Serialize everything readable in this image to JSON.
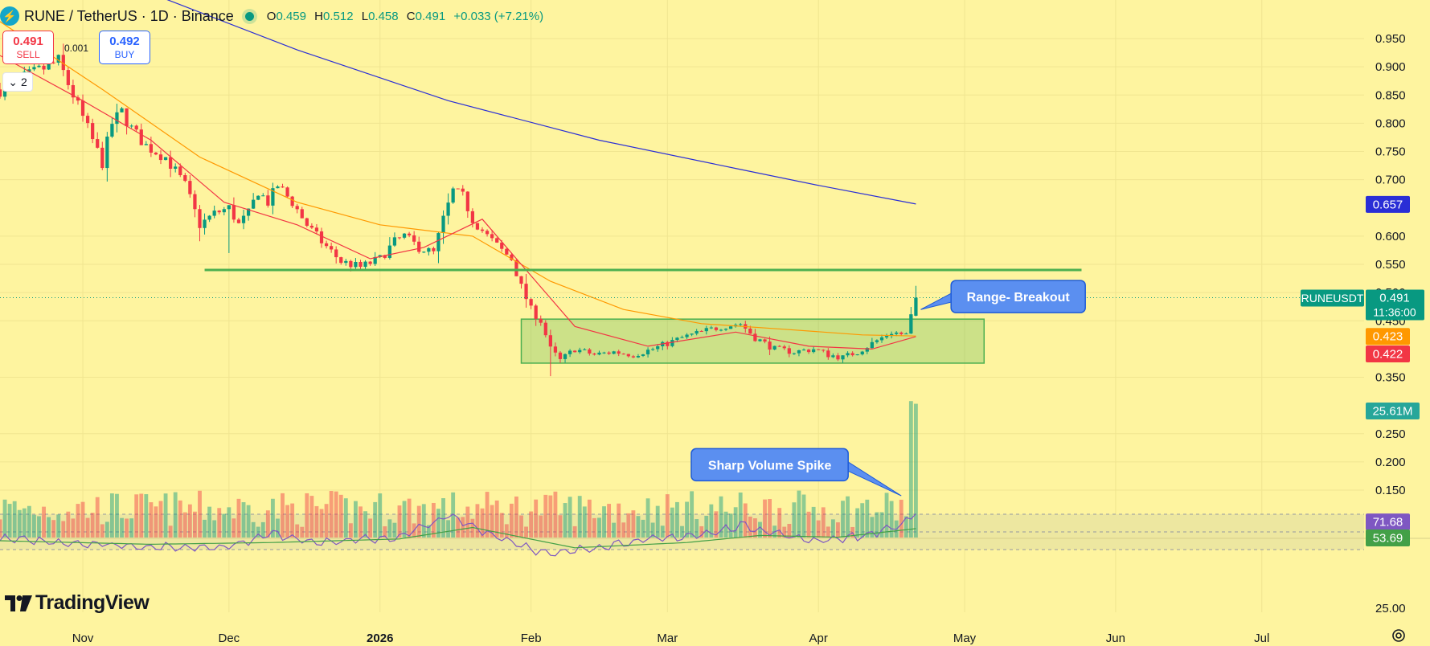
{
  "header": {
    "pair": "RUNE / TetherUS · 1D · Binance",
    "open_label": "O",
    "open": "0.459",
    "high_label": "H",
    "high": "0.512",
    "low_label": "L",
    "low": "0.458",
    "close_label": "C",
    "close": "0.491",
    "change": "+0.033 (+7.21%)"
  },
  "trade": {
    "sell_price": "0.491",
    "sell_label": "SELL",
    "buy_price": "0.492",
    "buy_label": "BUY",
    "spread": "0.001",
    "collapse_label": "2"
  },
  "brand": "TradingView",
  "colors": {
    "background": "#fef49f",
    "up": "#089981",
    "down": "#f23645",
    "ema_fast": "#f23645",
    "ema_mid": "#ff9800",
    "ema_slow": "#2a2ed6",
    "support": "#4caf50",
    "callout": "#5b8ff0"
  },
  "chart_data": {
    "type": "candlestick",
    "symbol": "RUNEUSDT",
    "interval": "1D",
    "price_axis": {
      "ticks": [
        "0.950",
        "0.900",
        "0.850",
        "0.800",
        "0.750",
        "0.700",
        "0.600",
        "0.550",
        "0.500",
        "0.450",
        "0.350",
        "0.250",
        "0.200",
        "0.150"
      ],
      "range": [
        0.1,
        0.96
      ]
    },
    "x_axis": {
      "ticks": [
        {
          "label": "Nov",
          "date": "2025-11-01"
        },
        {
          "label": "Dec",
          "date": "2025-12-01"
        },
        {
          "label": "2026",
          "date": "2026-01-01"
        },
        {
          "label": "Feb",
          "date": "2026-02-01"
        },
        {
          "label": "Mar",
          "date": "2026-03-01"
        },
        {
          "label": "Apr",
          "date": "2026-04-01"
        },
        {
          "label": "May",
          "date": "2026-05-01"
        },
        {
          "label": "Jun",
          "date": "2026-06-01"
        },
        {
          "label": "Jul",
          "date": "2026-07-01"
        }
      ],
      "range": [
        "2025-10-15",
        "2026-07-22"
      ]
    },
    "close_anchors": [
      [
        "2025-10-15",
        0.86
      ],
      [
        "2025-10-20",
        0.88
      ],
      [
        "2025-10-27",
        0.91
      ],
      [
        "2025-10-31",
        0.83
      ],
      [
        "2025-11-03",
        0.77
      ],
      [
        "2025-11-05",
        0.73
      ],
      [
        "2025-11-07",
        0.8
      ],
      [
        "2025-11-09",
        0.82
      ],
      [
        "2025-11-11",
        0.79
      ],
      [
        "2025-11-14",
        0.76
      ],
      [
        "2025-11-18",
        0.74
      ],
      [
        "2025-11-22",
        0.69
      ],
      [
        "2025-11-25",
        0.62
      ],
      [
        "2025-11-28",
        0.64
      ],
      [
        "2025-12-01",
        0.65
      ],
      [
        "2025-12-03",
        0.62
      ],
      [
        "2025-12-05",
        0.64
      ],
      [
        "2025-12-07",
        0.68
      ],
      [
        "2025-12-09",
        0.66
      ],
      [
        "2025-12-11",
        0.69
      ],
      [
        "2025-12-14",
        0.66
      ],
      [
        "2025-12-17",
        0.62
      ],
      [
        "2025-12-20",
        0.59
      ],
      [
        "2025-12-24",
        0.555
      ],
      [
        "2025-12-28",
        0.545
      ],
      [
        "2026-01-01",
        0.56
      ],
      [
        "2026-01-04",
        0.59
      ],
      [
        "2026-01-06",
        0.6
      ],
      [
        "2026-01-09",
        0.58
      ],
      [
        "2026-01-12",
        0.57
      ],
      [
        "2026-01-14",
        0.63
      ],
      [
        "2026-01-16",
        0.68
      ],
      [
        "2026-01-18",
        0.67
      ],
      [
        "2026-01-20",
        0.63
      ],
      [
        "2026-01-23",
        0.6
      ],
      [
        "2026-01-26",
        0.575
      ],
      [
        "2026-01-28",
        0.56
      ],
      [
        "2026-01-30",
        0.51
      ],
      [
        "2026-02-01",
        0.47
      ],
      [
        "2026-02-03",
        0.45
      ],
      [
        "2026-02-05",
        0.4
      ],
      [
        "2026-02-07",
        0.38
      ],
      [
        "2026-02-10",
        0.4
      ],
      [
        "2026-02-14",
        0.39
      ],
      [
        "2026-02-18",
        0.395
      ],
      [
        "2026-02-22",
        0.39
      ],
      [
        "2026-02-26",
        0.4
      ],
      [
        "2026-03-01",
        0.41
      ],
      [
        "2026-03-04",
        0.42
      ],
      [
        "2026-03-08",
        0.43
      ],
      [
        "2026-03-12",
        0.44
      ],
      [
        "2026-03-16",
        0.445
      ],
      [
        "2026-03-19",
        0.42
      ],
      [
        "2026-03-23",
        0.4
      ],
      [
        "2026-03-27",
        0.395
      ],
      [
        "2026-03-31",
        0.4
      ],
      [
        "2026-04-03",
        0.39
      ],
      [
        "2026-04-06",
        0.385
      ],
      [
        "2026-04-09",
        0.395
      ],
      [
        "2026-04-12",
        0.41
      ],
      [
        "2026-04-16",
        0.43
      ],
      [
        "2026-04-19",
        0.425
      ],
      [
        "2026-04-20",
        0.458
      ],
      [
        "2026-04-21",
        0.491
      ]
    ],
    "last_candle": {
      "date": "2026-04-21",
      "open": 0.459,
      "high": 0.512,
      "low": 0.458,
      "close": 0.491
    },
    "moving_averages": [
      {
        "value": "0.657",
        "color": "#2a2ed6",
        "points": [
          [
            "2025-10-15",
            1.12
          ],
          [
            "2025-11-15",
            1.03
          ],
          [
            "2025-12-15",
            0.93
          ],
          [
            "2026-01-15",
            0.84
          ],
          [
            "2026-02-15",
            0.77
          ],
          [
            "2026-03-15",
            0.72
          ],
          [
            "2026-04-01",
            0.69
          ],
          [
            "2026-04-21",
            0.657
          ]
        ]
      },
      {
        "value": "0.423",
        "color": "#ff9800",
        "points": [
          [
            "2025-10-15",
            0.98
          ],
          [
            "2025-11-05",
            0.86
          ],
          [
            "2025-11-25",
            0.74
          ],
          [
            "2025-12-15",
            0.66
          ],
          [
            "2026-01-01",
            0.62
          ],
          [
            "2026-01-20",
            0.6
          ],
          [
            "2026-02-05",
            0.52
          ],
          [
            "2026-02-20",
            0.47
          ],
          [
            "2026-03-08",
            0.445
          ],
          [
            "2026-03-25",
            0.435
          ],
          [
            "2026-04-10",
            0.425
          ],
          [
            "2026-04-21",
            0.423
          ]
        ]
      },
      {
        "value": "0.422",
        "color": "#f23645",
        "points": [
          [
            "2025-10-15",
            0.92
          ],
          [
            "2025-11-01",
            0.84
          ],
          [
            "2025-11-15",
            0.77
          ],
          [
            "2025-11-30",
            0.66
          ],
          [
            "2025-12-15",
            0.62
          ],
          [
            "2025-12-30",
            0.56
          ],
          [
            "2026-01-10",
            0.58
          ],
          [
            "2026-01-22",
            0.63
          ],
          [
            "2026-02-01",
            0.53
          ],
          [
            "2026-02-10",
            0.44
          ],
          [
            "2026-02-25",
            0.405
          ],
          [
            "2026-03-15",
            0.43
          ],
          [
            "2026-03-30",
            0.405
          ],
          [
            "2026-04-12",
            0.4
          ],
          [
            "2026-04-21",
            0.422
          ]
        ]
      }
    ],
    "support_line": {
      "price": 0.54,
      "from": "2025-11-26",
      "to": "2026-05-25"
    },
    "range_box": {
      "from": "2026-01-30",
      "to": "2026-05-05",
      "top": 0.453,
      "bottom": 0.375
    },
    "callouts": [
      {
        "text": "Range- Breakout",
        "price": 0.493,
        "date": "2026-05-12",
        "target_date": "2026-04-22",
        "target_price": 0.47
      },
      {
        "text": "Sharp Volume Spike",
        "price": 0.195,
        "date": "2026-03-22",
        "target_date": "2026-04-18",
        "target_price": 0.14
      }
    ],
    "volume": {
      "last_label": "25.61M",
      "last_value": 25.61,
      "typical_range_m": [
        2,
        9
      ]
    },
    "rsi": {
      "levels": [
        70,
        50,
        30
      ],
      "value": "71.68",
      "value_num": 71.68,
      "ma_value": "53.69",
      "ma_value_num": 53.69,
      "tick": "25.00",
      "anchors": [
        [
          "2025-10-15",
          42
        ],
        [
          "2025-11-05",
          36
        ],
        [
          "2025-11-20",
          32
        ],
        [
          "2025-12-01",
          34
        ],
        [
          "2025-12-10",
          48
        ],
        [
          "2025-12-20",
          38
        ],
        [
          "2026-01-05",
          44
        ],
        [
          "2026-01-15",
          68
        ],
        [
          "2026-01-25",
          45
        ],
        [
          "2026-02-05",
          24
        ],
        [
          "2026-02-20",
          38
        ],
        [
          "2026-03-10",
          48
        ],
        [
          "2026-03-16",
          58
        ],
        [
          "2026-03-30",
          40
        ],
        [
          "2026-04-10",
          45
        ],
        [
          "2026-04-18",
          58
        ],
        [
          "2026-04-21",
          71.68
        ]
      ],
      "ma_anchors": [
        [
          "2025-10-15",
          40
        ],
        [
          "2025-11-15",
          36
        ],
        [
          "2025-12-10",
          38
        ],
        [
          "2026-01-05",
          42
        ],
        [
          "2026-01-20",
          55
        ],
        [
          "2026-02-10",
          32
        ],
        [
          "2026-03-05",
          38
        ],
        [
          "2026-03-20",
          46
        ],
        [
          "2026-04-05",
          44
        ],
        [
          "2026-04-21",
          53.69
        ]
      ]
    },
    "price_labels": [
      {
        "text": "RUNEUSDT",
        "color": "#089981"
      },
      {
        "text": "0.491",
        "color": "#089981"
      },
      {
        "text": "11:36:00",
        "color": "#089981"
      }
    ]
  }
}
